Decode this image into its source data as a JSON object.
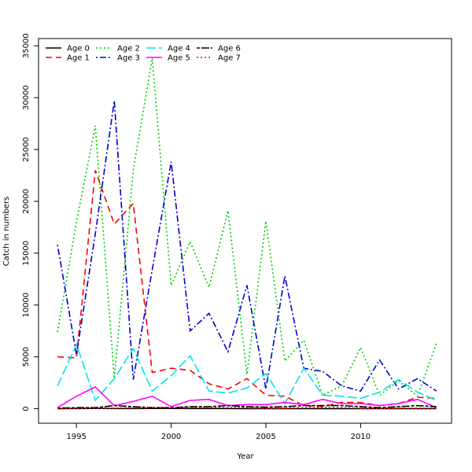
{
  "chart_data": {
    "type": "line",
    "title": "",
    "xlabel": "Year",
    "ylabel": "Catch in numbers",
    "xlim": [
      1993.0,
      2014.8
    ],
    "ylim": [
      -1400,
      35700
    ],
    "x_ticks": [
      1995,
      2000,
      2005,
      2010
    ],
    "y_ticks": [
      0,
      5000,
      10000,
      15000,
      20000,
      25000,
      30000,
      35000
    ],
    "grid": false,
    "legend_position": "top-left",
    "x": [
      1994,
      1995,
      1996,
      1997,
      1998,
      1999,
      2000,
      2001,
      2002,
      2003,
      2004,
      2005,
      2006,
      2007,
      2008,
      2009,
      2010,
      2011,
      2012,
      2013,
      2014
    ],
    "series": [
      {
        "name": "Age 0",
        "color": "#000000",
        "dash": "solid",
        "values": [
          0,
          20,
          30,
          20,
          20,
          30,
          30,
          20,
          20,
          20,
          10,
          10,
          10,
          10,
          10,
          10,
          10,
          10,
          10,
          10,
          10
        ]
      },
      {
        "name": "Age 1",
        "color": "#FF0000",
        "dash": "dashed",
        "values": [
          5000,
          4900,
          23000,
          17800,
          19800,
          3500,
          3900,
          3700,
          2400,
          1900,
          2900,
          1300,
          1200,
          300,
          200,
          600,
          600,
          300,
          500,
          1100,
          1000
        ]
      },
      {
        "name": "Age 2",
        "color": "#00CD00",
        "dash": "dotted",
        "values": [
          7400,
          18000,
          27300,
          2900,
          23000,
          33800,
          11900,
          16100,
          11700,
          19100,
          3300,
          18100,
          4600,
          6600,
          1300,
          2200,
          5900,
          1300,
          2700,
          1200,
          6300
        ]
      },
      {
        "name": "Age 3",
        "color": "#0000CD",
        "dash": "dotdash",
        "values": [
          15800,
          5200,
          16900,
          29700,
          2800,
          13400,
          23800,
          7500,
          9200,
          5500,
          11900,
          1900,
          12800,
          3900,
          3600,
          2200,
          1700,
          4700,
          1900,
          2900,
          1700
        ]
      },
      {
        "name": "Age 4",
        "color": "#00E5EE",
        "dash": "longdash",
        "values": [
          2200,
          6200,
          800,
          2900,
          5800,
          1700,
          3200,
          5100,
          1700,
          1500,
          2000,
          3400,
          500,
          3900,
          1300,
          1200,
          1000,
          1600,
          2800,
          1600,
          800
        ]
      },
      {
        "name": "Age 5",
        "color": "#FF00FF",
        "dash": "solid",
        "values": [
          100,
          1200,
          2100,
          300,
          700,
          1200,
          200,
          800,
          900,
          300,
          400,
          400,
          600,
          400,
          900,
          500,
          500,
          300,
          500,
          900,
          100
        ]
      },
      {
        "name": "Age 6",
        "color": "#000000",
        "dash": "twodash",
        "values": [
          50,
          100,
          100,
          300,
          200,
          100,
          100,
          200,
          200,
          300,
          200,
          150,
          200,
          300,
          300,
          300,
          200,
          100,
          200,
          300,
          200
        ]
      },
      {
        "name": "Age 7",
        "color": "#FF0000",
        "dash": "dotted",
        "values": [
          0,
          20,
          50,
          50,
          80,
          100,
          120,
          100,
          150,
          100,
          100,
          50,
          50,
          100,
          100,
          100,
          50,
          50,
          50,
          50,
          50
        ]
      }
    ]
  }
}
